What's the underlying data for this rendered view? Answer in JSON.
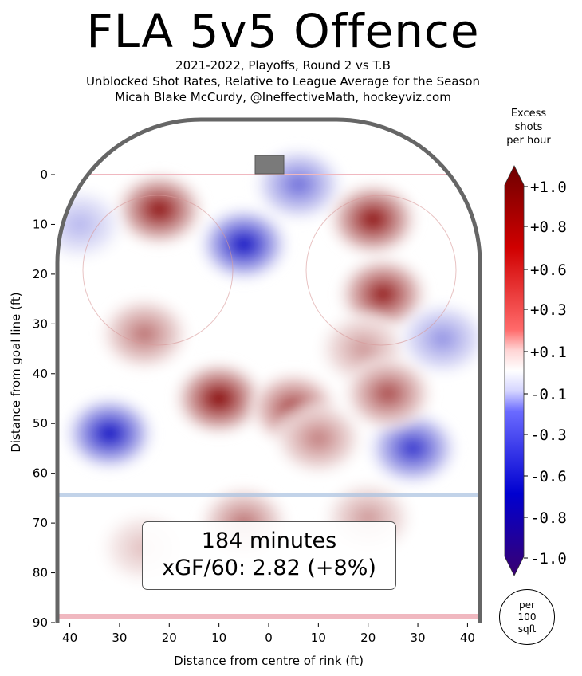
{
  "header": {
    "title": "FLA 5v5 Offence",
    "subtitle_1": "2021-2022, Playoffs, Round 2 vs T.B",
    "subtitle_2": "Unblocked Shot Rates, Relative to League Average for the Season",
    "subtitle_3": "Micah Blake McCurdy, @IneffectiveMath, hockeyviz.com"
  },
  "stats_box": {
    "minutes": "184 minutes",
    "xgf": "xGF/60: 2.82 (+8%)"
  },
  "colorbar": {
    "title_1": "Excess",
    "title_2": "shots",
    "title_3": "per hour",
    "tick_labels": [
      "+1.0",
      "+0.8",
      "+0.6",
      "+0.3",
      "+0.1",
      "-0.1",
      "-0.3",
      "-0.6",
      "-0.8",
      "-1.0"
    ]
  },
  "unit_badge": {
    "line_1": "per",
    "line_2": "100",
    "line_3": "sqft"
  },
  "colors": {
    "positive": "#b00000",
    "negative": "#1010c0",
    "neutral": "#ffffff",
    "rink_border": "#666666",
    "goal_line": "#f0b8c0"
  },
  "chart_data": {
    "type": "heatmap",
    "title": "FLA 5v5 Offence",
    "xlabel": "Distance from centre of rink (ft)",
    "ylabel": "Distance from goal line (ft)",
    "x_ticks": [
      "40",
      "30",
      "20",
      "10",
      "0",
      "10",
      "20",
      "30",
      "40"
    ],
    "y_ticks": [
      "0",
      "10",
      "20",
      "30",
      "40",
      "50",
      "60",
      "70",
      "80",
      "90"
    ],
    "xlim": [
      -42.5,
      42.5
    ],
    "ylim": [
      0,
      90
    ],
    "value_range": [
      -1.0,
      1.0
    ],
    "hotspots": [
      {
        "x": -22,
        "y": 7,
        "value": 0.95
      },
      {
        "x": -5,
        "y": 14,
        "value": -1.0
      },
      {
        "x": 6,
        "y": 2,
        "value": -0.6
      },
      {
        "x": 21,
        "y": 9,
        "value": 0.95
      },
      {
        "x": 23,
        "y": 24,
        "value": 0.9
      },
      {
        "x": 19,
        "y": 35,
        "value": 0.4
      },
      {
        "x": -10,
        "y": 45,
        "value": 1.0
      },
      {
        "x": 5,
        "y": 47,
        "value": 0.75
      },
      {
        "x": -25,
        "y": 32,
        "value": 0.55
      },
      {
        "x": 10,
        "y": 53,
        "value": 0.5
      },
      {
        "x": -32,
        "y": 52,
        "value": -1.0
      },
      {
        "x": 29,
        "y": 55,
        "value": -0.85
      },
      {
        "x": 35,
        "y": 33,
        "value": -0.45
      },
      {
        "x": 24,
        "y": 44,
        "value": 0.7
      },
      {
        "x": -38,
        "y": 10,
        "value": -0.3
      },
      {
        "x": -5,
        "y": 70,
        "value": 0.55
      },
      {
        "x": 20,
        "y": 69,
        "value": 0.4
      },
      {
        "x": -25,
        "y": 75,
        "value": 0.25
      }
    ]
  }
}
